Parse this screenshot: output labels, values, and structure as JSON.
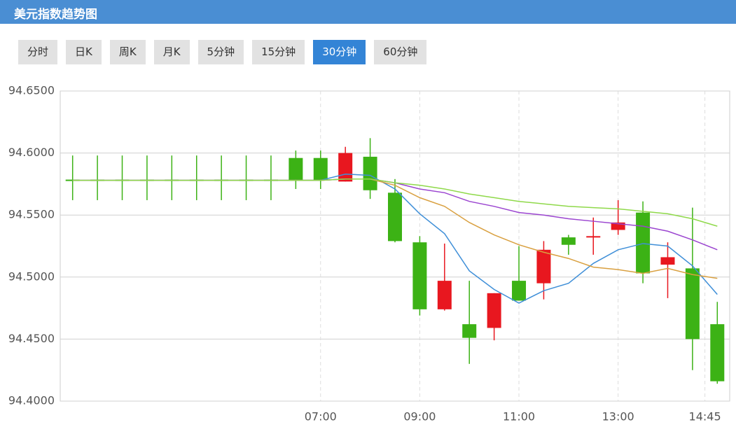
{
  "header": {
    "title": "美元指数趋势图"
  },
  "tabs": [
    "分时",
    "日K",
    "周K",
    "月K",
    "5分钟",
    "15分钟",
    "30分钟",
    "60分钟"
  ],
  "active_tab": 6,
  "chart_data": {
    "type": "candlestick",
    "x": [
      2,
      2.5,
      3,
      3.5,
      4,
      4.5,
      5,
      5.5,
      6,
      6.5,
      7,
      7.5,
      8,
      8.5,
      9,
      9.5,
      10,
      10.5,
      11,
      11.5,
      12,
      12.5,
      13,
      13.5,
      14,
      14.5,
      15
    ],
    "open": [
      94.578,
      94.578,
      94.578,
      94.578,
      94.578,
      94.578,
      94.578,
      94.578,
      94.578,
      94.596,
      94.596,
      94.577,
      94.597,
      94.568,
      94.528,
      94.474,
      94.462,
      94.459,
      94.497,
      94.495,
      94.532,
      94.532,
      94.538,
      94.552,
      94.51,
      94.507,
      94.462
    ],
    "high": [
      94.598,
      94.598,
      94.598,
      94.598,
      94.598,
      94.598,
      94.598,
      94.598,
      94.598,
      94.602,
      94.602,
      94.605,
      94.612,
      94.579,
      94.533,
      94.527,
      94.497,
      94.487,
      94.525,
      94.529,
      94.534,
      94.548,
      94.562,
      94.561,
      94.528,
      94.556,
      94.48
    ],
    "low": [
      94.562,
      94.562,
      94.562,
      94.562,
      94.562,
      94.562,
      94.562,
      94.562,
      94.562,
      94.571,
      94.571,
      94.577,
      94.563,
      94.528,
      94.469,
      94.473,
      94.43,
      94.449,
      94.481,
      94.482,
      94.518,
      94.518,
      94.534,
      94.495,
      94.483,
      94.425,
      94.414
    ],
    "close": [
      94.578,
      94.578,
      94.578,
      94.578,
      94.578,
      94.578,
      94.578,
      94.578,
      94.578,
      94.578,
      94.578,
      94.6,
      94.57,
      94.529,
      94.474,
      94.497,
      94.451,
      94.487,
      94.481,
      94.522,
      94.526,
      94.533,
      94.544,
      94.503,
      94.516,
      94.45,
      94.416
    ],
    "up_color": "#e8171f",
    "down_color": "#3cb215",
    "lines": [
      {
        "color": "#3f8fd8",
        "values": [
          94.578,
          94.578,
          94.578,
          94.578,
          94.578,
          94.578,
          94.578,
          94.578,
          94.578,
          94.578,
          94.578,
          94.583,
          94.582,
          94.571,
          94.551,
          94.535,
          94.505,
          94.49,
          94.479,
          94.489,
          94.495,
          94.511,
          94.522,
          94.527,
          94.525,
          94.509,
          94.486
        ]
      },
      {
        "color": "#d9a040",
        "values": [
          94.578,
          94.578,
          94.578,
          94.578,
          94.578,
          94.578,
          94.578,
          94.578,
          94.578,
          94.578,
          94.578,
          94.579,
          94.579,
          94.574,
          94.564,
          94.557,
          94.544,
          94.534,
          94.526,
          94.52,
          94.515,
          94.508,
          94.506,
          94.503,
          94.507,
          94.502,
          94.499
        ]
      },
      {
        "color": "#9b45d0",
        "values": [
          94.578,
          94.578,
          94.578,
          94.578,
          94.578,
          94.578,
          94.578,
          94.578,
          94.578,
          94.578,
          94.578,
          94.579,
          94.579,
          94.576,
          94.571,
          94.568,
          94.561,
          94.557,
          94.552,
          94.55,
          94.547,
          94.545,
          94.543,
          94.541,
          94.537,
          94.53,
          94.522
        ]
      },
      {
        "color": "#8fd94a",
        "values": [
          94.578,
          94.578,
          94.578,
          94.578,
          94.578,
          94.578,
          94.578,
          94.578,
          94.578,
          94.578,
          94.578,
          94.579,
          94.579,
          94.576,
          94.574,
          94.571,
          94.567,
          94.564,
          94.561,
          94.559,
          94.557,
          94.556,
          94.555,
          94.553,
          94.551,
          94.547,
          94.541
        ]
      }
    ],
    "xlim": [
      1.75,
      15.25
    ],
    "ylim": [
      94.4,
      94.65
    ],
    "xticks": [
      {
        "value": 7,
        "label": "07:00"
      },
      {
        "value": 9,
        "label": "09:00"
      },
      {
        "value": 11,
        "label": "11:00"
      },
      {
        "value": 13,
        "label": "13:00"
      },
      {
        "value": 14.75,
        "label": "14:45"
      }
    ],
    "yticks": [
      {
        "value": 94.4,
        "label": "94.4000"
      },
      {
        "value": 94.45,
        "label": "94.4500"
      },
      {
        "value": 94.5,
        "label": "94.5000"
      },
      {
        "value": 94.55,
        "label": "94.5500"
      },
      {
        "value": 94.6,
        "label": "94.6000"
      },
      {
        "value": 94.65,
        "label": "94.6500"
      }
    ],
    "grid": true
  }
}
